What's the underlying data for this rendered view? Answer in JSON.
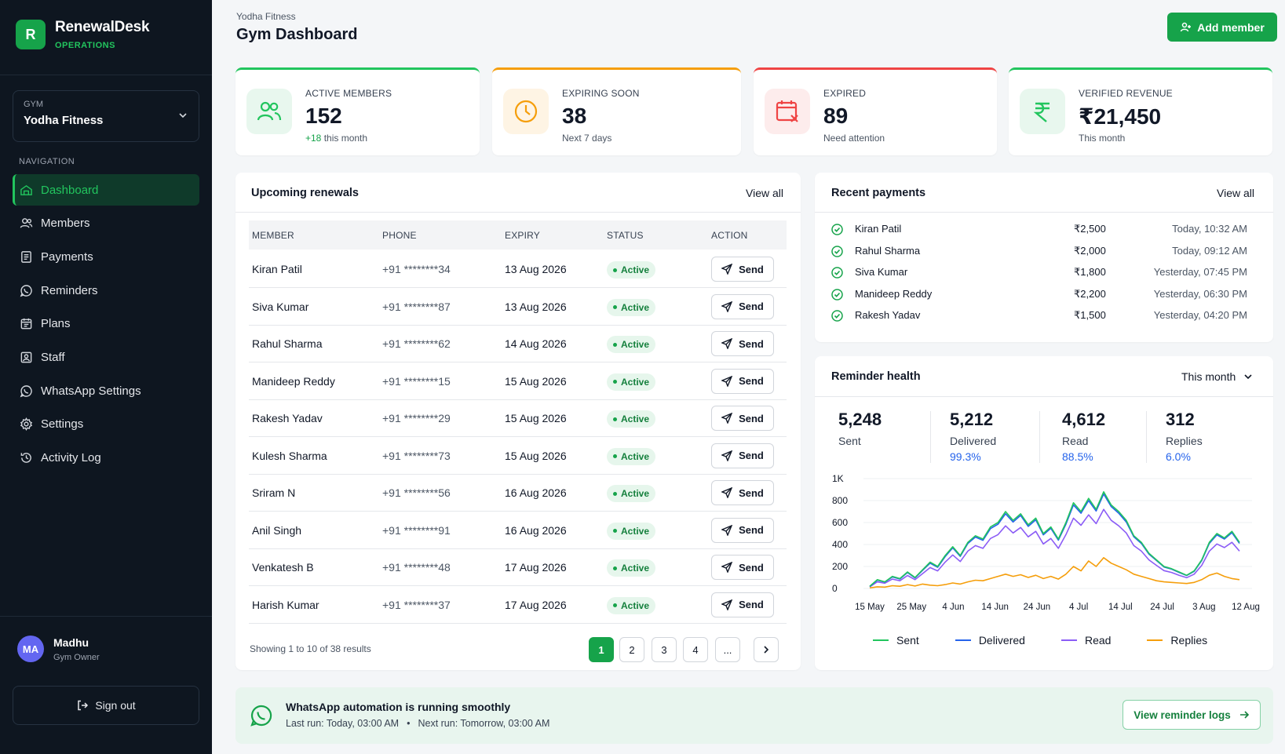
{
  "app": {
    "logo_letter": "R",
    "name": "RenewalDesk",
    "subtitle": "OPERATIONS"
  },
  "gym_select": {
    "label": "GYM",
    "value": "Yodha Fitness"
  },
  "nav": {
    "title": "NAVIGATION",
    "items": [
      {
        "label": "Dashboard",
        "icon": "dashboard-icon",
        "active": true
      },
      {
        "label": "Members",
        "icon": "users-icon"
      },
      {
        "label": "Payments",
        "icon": "receipt-icon"
      },
      {
        "label": "Reminders",
        "icon": "whatsapp-icon"
      },
      {
        "label": "Plans",
        "icon": "calendar-icon"
      },
      {
        "label": "Staff",
        "icon": "id-badge-icon"
      },
      {
        "label": "WhatsApp Settings",
        "icon": "whatsapp-icon"
      },
      {
        "label": "Settings",
        "icon": "gear-icon"
      },
      {
        "label": "Activity Log",
        "icon": "history-icon"
      }
    ]
  },
  "user": {
    "initials": "MA",
    "name": "Madhu",
    "role": "Gym Owner"
  },
  "signout_label": "Sign out",
  "header": {
    "breadcrumb": "Yodha Fitness",
    "title": "Gym Dashboard",
    "add_button": "Add member"
  },
  "stats": [
    {
      "label": "ACTIVE MEMBERS",
      "value": "152",
      "sub_highlight": "+18",
      "sub": " this month",
      "color": "#22c55e",
      "icon": "users-icon"
    },
    {
      "label": "EXPIRING SOON",
      "value": "38",
      "sub_highlight": "",
      "sub": "Next 7 days",
      "color": "#f59e0b",
      "icon": "clock-icon"
    },
    {
      "label": "EXPIRED",
      "value": "89",
      "sub_highlight": "",
      "sub": "Need attention",
      "color": "#ef4444",
      "icon": "calendar-x-icon"
    },
    {
      "label": "VERIFIED REVENUE",
      "value": "₹21,450",
      "sub_highlight": "",
      "sub": "This month",
      "color": "#22c55e",
      "icon": "rupee-icon"
    }
  ],
  "renewals": {
    "title": "Upcoming renewals",
    "view_all": "View all",
    "columns": [
      "MEMBER",
      "PHONE",
      "EXPIRY",
      "STATUS",
      "ACTION"
    ],
    "rows": [
      {
        "member": "Kiran Patil",
        "phone": "+91 ********34",
        "expiry": "13 Aug 2026",
        "status": "Active",
        "action": "Send"
      },
      {
        "member": "Siva Kumar",
        "phone": "+91 ********87",
        "expiry": "13 Aug 2026",
        "status": "Active",
        "action": "Send"
      },
      {
        "member": "Rahul Sharma",
        "phone": "+91 ********62",
        "expiry": "14 Aug 2026",
        "status": "Active",
        "action": "Send"
      },
      {
        "member": "Manideep Reddy",
        "phone": "+91 ********15",
        "expiry": "15 Aug 2026",
        "status": "Active",
        "action": "Send"
      },
      {
        "member": "Rakesh Yadav",
        "phone": "+91 ********29",
        "expiry": "15 Aug 2026",
        "status": "Active",
        "action": "Send"
      },
      {
        "member": "Kulesh Sharma",
        "phone": "+91 ********73",
        "expiry": "15 Aug 2026",
        "status": "Active",
        "action": "Send"
      },
      {
        "member": "Sriram N",
        "phone": "+91 ********56",
        "expiry": "16 Aug 2026",
        "status": "Active",
        "action": "Send"
      },
      {
        "member": "Anil Singh",
        "phone": "+91 ********91",
        "expiry": "16 Aug 2026",
        "status": "Active",
        "action": "Send"
      },
      {
        "member": "Venkatesh B",
        "phone": "+91 ********48",
        "expiry": "17 Aug 2026",
        "status": "Active",
        "action": "Send"
      },
      {
        "member": "Harish Kumar",
        "phone": "+91 ********37",
        "expiry": "17 Aug 2026",
        "status": "Active",
        "action": "Send"
      }
    ],
    "pagination": {
      "info": "Showing 1 to 10 of 38 results",
      "pages": [
        "1",
        "2",
        "3",
        "4",
        "..."
      ],
      "current": "1",
      "next": "›"
    }
  },
  "payments": {
    "title": "Recent payments",
    "view_all": "View all",
    "rows": [
      {
        "name": "Kiran Patil",
        "amount": "₹2,500",
        "time": "Today, 10:32 AM"
      },
      {
        "name": "Rahul Sharma",
        "amount": "₹2,000",
        "time": "Today, 09:12 AM"
      },
      {
        "name": "Siva Kumar",
        "amount": "₹1,800",
        "time": "Yesterday, 07:45 PM"
      },
      {
        "name": "Manideep Reddy",
        "amount": "₹2,200",
        "time": "Yesterday, 06:30 PM"
      },
      {
        "name": "Rakesh Yadav",
        "amount": "₹1,500",
        "time": "Yesterday, 04:20 PM"
      }
    ]
  },
  "reminder_health": {
    "title": "Reminder health",
    "range": "This month",
    "metrics": [
      {
        "value": "5,248",
        "label": "Sent",
        "pct": ""
      },
      {
        "value": "5,212",
        "label": "Delivered",
        "pct": "99.3%"
      },
      {
        "value": "4,612",
        "label": "Read",
        "pct": "88.5%"
      },
      {
        "value": "312",
        "label": "Replies",
        "pct": "6.0%"
      }
    ]
  },
  "chart_data": {
    "type": "line",
    "x_tick_labels": [
      "15 May",
      "25 May",
      "4 Jun",
      "14 Jun",
      "24 Jun",
      "4 Jul",
      "14 Jul",
      "24 Jul",
      "3 Aug",
      "12 Aug"
    ],
    "y_tick_labels": [
      "0",
      "200",
      "400",
      "600",
      "800",
      "1K"
    ],
    "ylim": [
      0,
      1000
    ],
    "grid": true,
    "legend_position": "bottom",
    "series": [
      {
        "name": "Sent",
        "color": "#22c55e",
        "values": [
          20,
          80,
          60,
          110,
          90,
          150,
          100,
          170,
          240,
          200,
          300,
          380,
          300,
          420,
          480,
          450,
          560,
          600,
          700,
          620,
          680,
          580,
          640,
          500,
          560,
          450,
          600,
          780,
          700,
          820,
          720,
          880,
          760,
          700,
          620,
          480,
          420,
          320,
          260,
          200,
          180,
          150,
          120,
          160,
          260,
          420,
          500,
          460,
          520,
          420
        ]
      },
      {
        "name": "Delivered",
        "color": "#2563eb",
        "values": [
          18,
          76,
          58,
          105,
          86,
          145,
          96,
          165,
          230,
          192,
          290,
          370,
          292,
          410,
          468,
          438,
          545,
          585,
          680,
          605,
          665,
          565,
          625,
          488,
          548,
          440,
          585,
          760,
          685,
          800,
          705,
          860,
          745,
          685,
          605,
          470,
          410,
          312,
          254,
          195,
          176,
          146,
          118,
          156,
          254,
          410,
          488,
          450,
          508,
          410
        ]
      },
      {
        "name": "Read",
        "color": "#8b5cf6",
        "values": [
          15,
          60,
          48,
          85,
          70,
          118,
          80,
          135,
          190,
          160,
          240,
          305,
          245,
          340,
          390,
          365,
          455,
          490,
          570,
          505,
          555,
          470,
          520,
          405,
          455,
          365,
          490,
          640,
          575,
          670,
          590,
          720,
          620,
          570,
          505,
          390,
          340,
          260,
          210,
          162,
          146,
          120,
          98,
          130,
          210,
          340,
          405,
          372,
          420,
          340
        ]
      },
      {
        "name": "Replies",
        "color": "#f59e0b",
        "values": [
          5,
          15,
          12,
          25,
          20,
          35,
          22,
          40,
          30,
          25,
          35,
          50,
          40,
          60,
          75,
          70,
          90,
          110,
          130,
          110,
          125,
          100,
          120,
          90,
          110,
          85,
          130,
          200,
          160,
          250,
          200,
          280,
          230,
          200,
          170,
          130,
          110,
          90,
          70,
          60,
          55,
          50,
          45,
          55,
          80,
          120,
          140,
          110,
          90,
          80
        ]
      }
    ]
  },
  "banner": {
    "title": "WhatsApp automation is running smoothly",
    "last_run": "Last run: Today, 03:00 AM",
    "bullet": "•",
    "next_run": "Next run: Tomorrow, 03:00 AM",
    "button": "View reminder logs"
  },
  "colors": {
    "brand": "#16a34a",
    "sidebar_bg": "#0e1620",
    "link": "#2563eb"
  }
}
